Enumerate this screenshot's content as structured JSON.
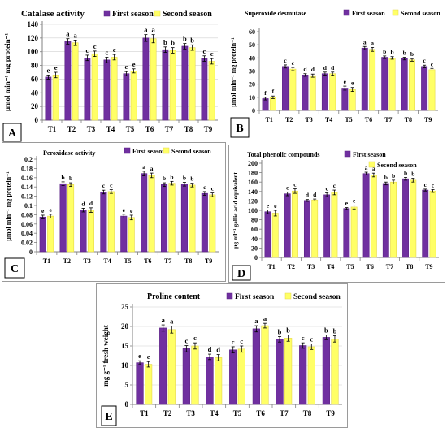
{
  "colors": {
    "first": "#7030A0",
    "second": "#FFFF66",
    "second_stroke": "#E6D84A",
    "axis": "#808080",
    "grid": "#d0d0d0"
  },
  "legend": {
    "first": "First season",
    "second": "Second season"
  },
  "chart_data": [
    {
      "type": "bar",
      "panel": "A",
      "title": "Catalase activity",
      "ylabel": "μmol min⁻¹ mg protein⁻¹",
      "xlabel": "",
      "ylim": [
        0,
        140
      ],
      "ystep": 20,
      "legend_position": "top",
      "categories": [
        "T1",
        "T2",
        "T3",
        "T4",
        "T5",
        "T6",
        "T7",
        "T8",
        "T9"
      ],
      "series": [
        {
          "name": "First season",
          "values": [
            63,
            115,
            91,
            88,
            68,
            120,
            103,
            108,
            90
          ],
          "errors": [
            3,
            4,
            4,
            4,
            3,
            5,
            4,
            4,
            4
          ],
          "letters": [
            "e",
            "a",
            "c",
            "c",
            "e",
            "a",
            "b",
            "b",
            "c"
          ]
        },
        {
          "name": "Second season",
          "values": [
            66,
            113,
            97,
            92,
            72,
            119,
            102,
            106,
            86
          ],
          "errors": [
            4,
            4,
            4,
            4,
            3,
            6,
            4,
            4,
            4
          ],
          "letters": [
            "e",
            "a",
            "c",
            "c",
            "e",
            "a",
            "b",
            "b",
            "c"
          ]
        }
      ]
    },
    {
      "type": "bar",
      "panel": "B",
      "title": "Superoxide desmutase",
      "ylabel": "μmol min⁻¹ mg protein⁻¹",
      "xlabel": "",
      "ylim": [
        0,
        60
      ],
      "ystep": 10,
      "legend_position": "top-right",
      "categories": [
        "T1",
        "T2",
        "T3",
        "T4",
        "T5",
        "T6",
        "T7",
        "T8",
        "T9"
      ],
      "series": [
        {
          "name": "First season",
          "values": [
            9,
            33.5,
            27,
            28,
            17,
            47.5,
            40.5,
            39.5,
            33.5
          ],
          "errors": [
            1,
            1.2,
            1,
            1.2,
            1.5,
            1.2,
            1,
            1,
            1
          ],
          "letters": [
            "f",
            "c",
            "d",
            "d",
            "e",
            "a",
            "b",
            "b",
            "c"
          ]
        },
        {
          "name": "Second season",
          "values": [
            10,
            31.5,
            26.5,
            28,
            16,
            46.5,
            40,
            38.5,
            31
          ],
          "errors": [
            1,
            1.2,
            1.2,
            1.2,
            1.5,
            1.5,
            1,
            1,
            1
          ],
          "letters": [
            "f",
            "c",
            "d",
            "d",
            "e",
            "a",
            "b",
            "b",
            "c"
          ]
        }
      ]
    },
    {
      "type": "bar",
      "panel": "C",
      "title": "Peroxidase activity",
      "ylabel": "μmol min⁻¹ mg protein⁻¹",
      "xlabel": "",
      "ylim": [
        0,
        0.2
      ],
      "ystep": 0.02,
      "legend_position": "top",
      "categories": [
        "T1",
        "T2",
        "T3",
        "T4",
        "T5",
        "T6",
        "T7",
        "T8",
        "T9"
      ],
      "series": [
        {
          "name": "First season",
          "values": [
            0.075,
            0.147,
            0.09,
            0.129,
            0.077,
            0.169,
            0.145,
            0.146,
            0.126
          ],
          "errors": [
            0.004,
            0.004,
            0.004,
            0.004,
            0.004,
            0.005,
            0.004,
            0.004,
            0.004
          ],
          "letters": [
            "e",
            "b",
            "d",
            "c",
            "e",
            "a",
            "b",
            "b",
            "c"
          ]
        },
        {
          "name": "Second season",
          "values": [
            0.077,
            0.145,
            0.09,
            0.13,
            0.074,
            0.165,
            0.148,
            0.144,
            0.123
          ],
          "errors": [
            0.004,
            0.004,
            0.005,
            0.004,
            0.005,
            0.005,
            0.004,
            0.004,
            0.004
          ],
          "letters": [
            "e",
            "b",
            "d",
            "c",
            "e",
            "a",
            "b",
            "b",
            "c"
          ]
        }
      ]
    },
    {
      "type": "bar",
      "panel": "D",
      "title": "Total phenolic compounds",
      "ylabel": "μg ml⁻¹ gallic acid equivalent",
      "xlabel": "",
      "ylim": [
        0,
        200
      ],
      "ystep": 20,
      "legend_position": "top-right",
      "categories": [
        "T1",
        "T2",
        "T3",
        "T4",
        "T5",
        "T6",
        "T7",
        "T8",
        "T9"
      ],
      "series": [
        {
          "name": "First season",
          "values": [
            97,
            135,
            121,
            133,
            104,
            178,
            157,
            167,
            143
          ],
          "errors": [
            4,
            4,
            2,
            4,
            2,
            3,
            3,
            3,
            2
          ],
          "letters": [
            "e",
            "c",
            "d",
            "c",
            "e",
            "a",
            "b",
            "b",
            "c"
          ]
        },
        {
          "name": "Second season",
          "values": [
            94,
            141,
            122,
            138,
            107,
            175,
            160,
            164,
            141
          ],
          "errors": [
            6,
            5,
            2,
            5,
            4,
            4,
            4,
            4,
            3
          ],
          "letters": [
            "e",
            "c",
            "d",
            "c",
            "e",
            "a",
            "b",
            "b",
            "c"
          ]
        }
      ]
    },
    {
      "type": "bar",
      "panel": "E",
      "title": "Proline content",
      "ylabel": "mg g⁻¹ fresh weight",
      "xlabel": "",
      "ylim": [
        0,
        25
      ],
      "ystep": 5,
      "legend_position": "top",
      "categories": [
        "T1",
        "T2",
        "T3",
        "T4",
        "T5",
        "T6",
        "T7",
        "T8",
        "T9"
      ],
      "series": [
        {
          "name": "First season",
          "values": [
            10.7,
            19.6,
            14.3,
            12.2,
            14.0,
            19.4,
            16.7,
            15.1,
            17.2
          ],
          "errors": [
            0.5,
            0.8,
            0.8,
            0.7,
            0.8,
            0.8,
            0.7,
            0.7,
            0.6
          ],
          "letters": [
            "e",
            "a",
            "c",
            "d",
            "c",
            "a",
            "b",
            "c",
            "b"
          ]
        },
        {
          "name": "Second season",
          "values": [
            10.3,
            19.2,
            15.0,
            12.0,
            14.2,
            20.2,
            17.0,
            14.8,
            16.8
          ],
          "errors": [
            0.7,
            0.9,
            0.8,
            0.8,
            0.8,
            0.6,
            0.8,
            0.7,
            0.8
          ],
          "letters": [
            "e",
            "a",
            "c",
            "d",
            "c",
            "a",
            "b",
            "c",
            "b"
          ]
        }
      ]
    }
  ]
}
